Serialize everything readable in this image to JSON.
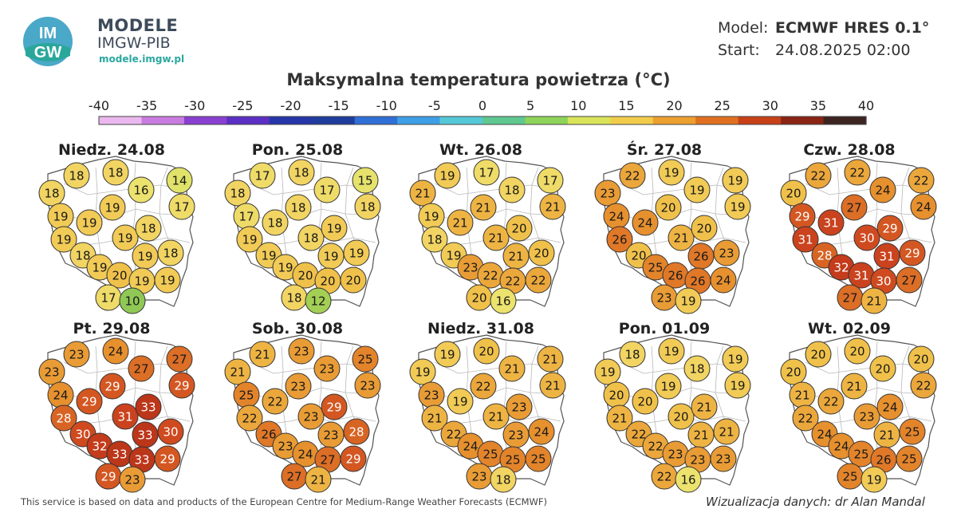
{
  "branding": {
    "title": "MODELE",
    "subtitle": "IMGW-PIB",
    "url": "modele.imgw.pl",
    "logo_text_top": "IM",
    "logo_text_bottom": "GW"
  },
  "model": {
    "label": "Model:",
    "value": "ECMWF HRES 0.1°",
    "start_label": "Start:",
    "start_value": "24.08.2025 02:00"
  },
  "title": "Maksymalna temperatura powietrza (°C)",
  "scale": {
    "ticks": [
      "-40",
      "-35",
      "-30",
      "-25",
      "-20",
      "-15",
      "-10",
      "-5",
      "0",
      "5",
      "10",
      "15",
      "20",
      "25",
      "30",
      "35",
      "40"
    ],
    "colors": [
      "#eab8ee",
      "#c97ce0",
      "#8a3fd1",
      "#5b2fc4",
      "#2636a9",
      "#1f3d9c",
      "#2f6fd6",
      "#3e9fe6",
      "#55c8d8",
      "#5fc890",
      "#8dd45a",
      "#d9e45a",
      "#f1cc4a",
      "#eca030",
      "#e07020",
      "#c84018",
      "#8a2414",
      "#3c2420"
    ]
  },
  "footer": {
    "left": "This service is based on data and products of the European Centre for Medium-Range Weather Forecasts (ECMWF)",
    "right": "Wizualizacja danych: dr Alan Mandal"
  },
  "days": [
    {
      "label": "Niedz. 24.08",
      "values": [
        18,
        18,
        16,
        14,
        18,
        19,
        17,
        19,
        19,
        19,
        18,
        19,
        19,
        18,
        18,
        19,
        20,
        19,
        19,
        17,
        10
      ]
    },
    {
      "label": "Pon. 25.08",
      "values": [
        17,
        18,
        17,
        15,
        18,
        18,
        18,
        17,
        18,
        18,
        19,
        19,
        19,
        19,
        19,
        19,
        20,
        20,
        20,
        18,
        12
      ]
    },
    {
      "label": "Wt. 26.08",
      "values": [
        19,
        17,
        18,
        17,
        21,
        21,
        21,
        19,
        21,
        21,
        20,
        18,
        21,
        20,
        19,
        23,
        22,
        22,
        22,
        20,
        16
      ]
    },
    {
      "label": "Śr. 27.08",
      "values": [
        22,
        19,
        19,
        19,
        23,
        20,
        19,
        24,
        24,
        21,
        20,
        26,
        26,
        23,
        20,
        25,
        26,
        26,
        24,
        23,
        19
      ]
    },
    {
      "label": "Czw. 28.08",
      "values": [
        22,
        22,
        24,
        22,
        20,
        27,
        24,
        29,
        31,
        30,
        29,
        31,
        31,
        29,
        28,
        32,
        31,
        30,
        27,
        27,
        21
      ]
    },
    {
      "label": "Pt. 29.08",
      "values": [
        23,
        24,
        27,
        27,
        23,
        29,
        29,
        24,
        29,
        31,
        33,
        28,
        33,
        30,
        30,
        32,
        33,
        33,
        29,
        29,
        23
      ]
    },
    {
      "label": "Sob. 30.08",
      "values": [
        21,
        23,
        23,
        25,
        21,
        23,
        23,
        25,
        22,
        23,
        29,
        22,
        23,
        28,
        26,
        23,
        24,
        27,
        29,
        27,
        21
      ]
    },
    {
      "label": "Niedz. 31.08",
      "values": [
        19,
        20,
        21,
        21,
        19,
        22,
        21,
        23,
        19,
        21,
        23,
        21,
        23,
        24,
        22,
        24,
        25,
        25,
        25,
        23,
        18
      ]
    },
    {
      "label": "Pon. 01.09",
      "values": [
        18,
        19,
        18,
        19,
        19,
        19,
        19,
        20,
        20,
        20,
        21,
        21,
        21,
        21,
        22,
        22,
        23,
        23,
        23,
        22,
        16
      ]
    },
    {
      "label": "Wt. 02.09",
      "values": [
        20,
        20,
        20,
        20,
        20,
        21,
        22,
        21,
        22,
        23,
        24,
        22,
        21,
        25,
        24,
        24,
        25,
        26,
        25,
        25,
        19
      ]
    }
  ]
}
